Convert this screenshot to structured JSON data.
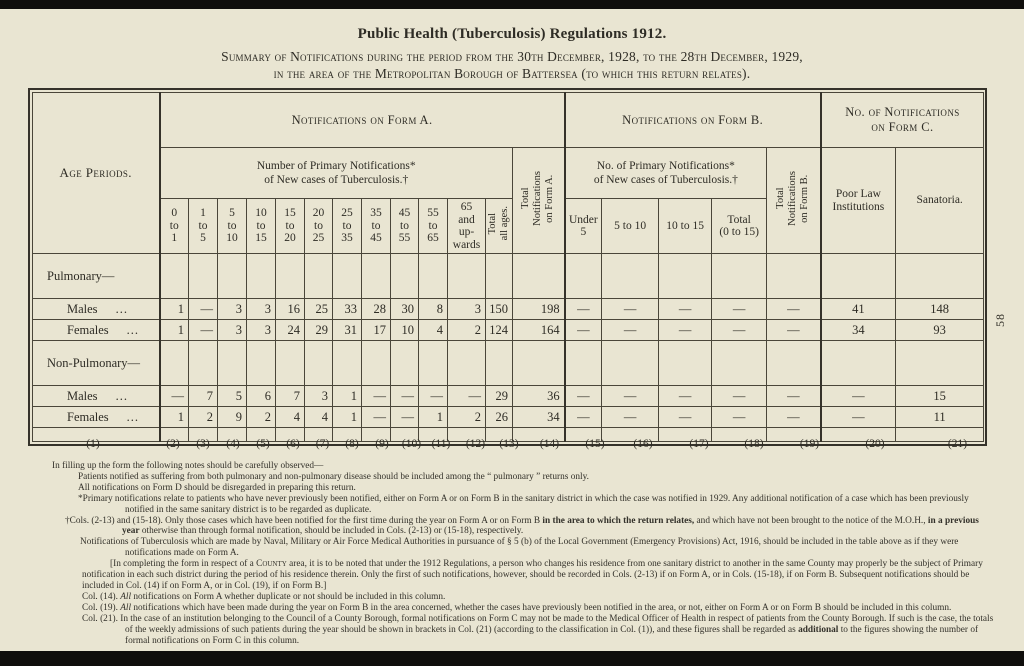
{
  "page": {
    "number_vertical": "58"
  },
  "title": "Public Health (Tuberculosis) Regulations 1912.",
  "subtitle_line1": "Summary of Notifications during the period from the 30th December, 1928, to the 28th December, 1929,",
  "subtitle_line2": "in the area of the Metropolitan Borough of Battersea (to which this return relates).",
  "table": {
    "col1_header": "Age Periods.",
    "formA": {
      "title": "Notifications on Form A.",
      "subtitle": "Number of Primary Notifications*\nof New cases of Tuberculosis.†",
      "age_columns": [
        "0\nto\n1",
        "1\nto\n5",
        "5\nto\n10",
        "10\nto\n15",
        "15\nto\n20",
        "20\nto\n25",
        "25\nto\n35",
        "35\nto\n45",
        "45\nto\n55",
        "55\nto\n65",
        "65\nand\nup-\nwards"
      ],
      "total_all_ages": "Total\nall ages.",
      "total_notifications": "Total\nNotifications\non Form A."
    },
    "formB": {
      "title": "Notifications on Form B.",
      "subtitle": "No. of Primary Notifications*\nof New cases of Tuberculosis.†",
      "columns": [
        "Under\n5",
        "5 to 10",
        "10 to 15",
        "Total\n(0 to 15)"
      ],
      "total_notifications": "Total\nNotifications\non Form B."
    },
    "formC": {
      "title": "No. of Notifications\non Form C.",
      "columns": [
        "Poor Law\nInstitutions",
        "Sanatoria."
      ]
    },
    "rows": [
      {
        "type": "group",
        "label": "Pulmonary—"
      },
      {
        "type": "data",
        "label": "Males",
        "dots": "...",
        "values": [
          "1",
          "—",
          "3",
          "3",
          "16",
          "25",
          "33",
          "28",
          "30",
          "8",
          "3",
          "150",
          "198",
          "—",
          "—",
          "—",
          "—",
          "—",
          "41",
          "148"
        ]
      },
      {
        "type": "data",
        "label": "Females",
        "dots": "...",
        "values": [
          "1",
          "—",
          "3",
          "3",
          "24",
          "29",
          "31",
          "17",
          "10",
          "4",
          "2",
          "124",
          "164",
          "—",
          "—",
          "—",
          "—",
          "—",
          "34",
          "93"
        ]
      },
      {
        "type": "group",
        "label": "Non-Pulmonary—"
      },
      {
        "type": "data",
        "label": "Males",
        "dots": "...",
        "values": [
          "—",
          "7",
          "5",
          "6",
          "7",
          "3",
          "1",
          "—",
          "—",
          "—",
          "—",
          "29",
          "36",
          "—",
          "—",
          "—",
          "—",
          "—",
          "—",
          "15"
        ]
      },
      {
        "type": "data",
        "label": "Females",
        "dots": "...",
        "values": [
          "1",
          "2",
          "9",
          "2",
          "4",
          "4",
          "1",
          "—",
          "—",
          "1",
          "2",
          "26",
          "34",
          "—",
          "—",
          "—",
          "—",
          "—",
          "—",
          "11"
        ]
      },
      {
        "type": "spacer",
        "label": ""
      }
    ],
    "column_numbers": [
      "(1)",
      "(2)",
      "(3)",
      "(4)",
      "(5)",
      "(6)",
      "(7)",
      "(8)",
      "(9)",
      "(10)",
      "(11)",
      "(12)",
      "(13)",
      "(14)",
      "(15)",
      "(16)",
      "(17)",
      "(18)",
      "(19)",
      "(20)",
      "(21)"
    ]
  },
  "footnotes": [
    {
      "cls": "fn-intro",
      "parts": [
        {
          "t": "In filling up the form the following notes should be carefully observed—"
        }
      ]
    },
    {
      "cls": "fn-a",
      "parts": [
        {
          "t": "Patients notified as suffering from both pulmonary and non-pulmonary disease should be included among the “ pulmonary ” returns only."
        }
      ]
    },
    {
      "cls": "fn-a",
      "parts": [
        {
          "t": "All notifications on Form D should be disregarded in preparing this return."
        }
      ]
    },
    {
      "cls": "fn-a",
      "parts": [
        {
          "t": "*Primary notifications relate to patients who have never previously been notified, either on Form A or on Form B in the sanitary district in which the case was notified in 1929.  Any additional notification of a case which has been previously notified in the same sanitary district is to be regarded as duplicate."
        }
      ]
    },
    {
      "cls": "fn-b",
      "parts": [
        {
          "t": "†Cols. (2-13) and (15-18).  Only those cases which have been notified for the first time during the year on Form A or on Form B "
        },
        {
          "t": "in the area to which the return relates,",
          "b": true
        },
        {
          "t": " and which have not been brought to the notice of the M.O.H., "
        },
        {
          "t": "in a previous year",
          "b": true
        },
        {
          "t": " otherwise than through formal notification, should be included in Cols. (2-13) or (15-18), respectively."
        }
      ]
    },
    {
      "cls": "fn-c",
      "parts": [
        {
          "t": "Notifications of Tuberculosis which are made by Naval, Military or Air Force Medical Authorities in pursuance of § 5 (b) of the Local Government (Emergency Provisions) Act, 1916, should be included in the table above as if they were notifications made on Form A."
        }
      ]
    },
    {
      "cls": "fn-d",
      "parts": [
        {
          "t": "[In completing the form in respect of a "
        },
        {
          "t": "County",
          "sc": true
        },
        {
          "t": " area, it is to be noted that under the 1912 Regulations, a person who changes his residence from one sanitary district to another in the same County may properly be the subject of Primary notification in each such district during the period of his residence therein.  Only the first of such notifications, however, should be recorded in Cols. (2-13) if on Form A, or in Cols. (15-18), if on Form B.  Subsequent notifications should be included in Col. (14) if on Form A, or in Col. (19), if on Form B.]"
        }
      ]
    },
    {
      "cls": "fn-e",
      "parts": [
        {
          "t": "Col. (14).  "
        },
        {
          "t": "All",
          "i": true
        },
        {
          "t": " notifications on Form A whether duplicate or not should be included in this column."
        }
      ]
    },
    {
      "cls": "fn-e",
      "parts": [
        {
          "t": "Col. (19).  "
        },
        {
          "t": "All",
          "i": true
        },
        {
          "t": " notifications which have been made during the year on Form B in the area concerned, whether the cases have previously been notified in the area, or not, either on Form A or on Form B should be included in this column."
        }
      ]
    },
    {
      "cls": "fn-e",
      "parts": [
        {
          "t": "Col. (21).  In the case of an institution belonging to the Council of a County Borough, formal notifications on Form C may not be made to the Medical Officer of Health in respect of patients from the County Borough.  If such is the case, the totals of the weekly admissions of such patients during the year should be shown in brackets in Col. (21) (according to the classification in Col. (1)), and these figures shall be regarded as "
        },
        {
          "t": "additional",
          "b": true
        },
        {
          "t": " to the figures showing the number of formal notifications on Form C in this column."
        }
      ]
    }
  ]
}
